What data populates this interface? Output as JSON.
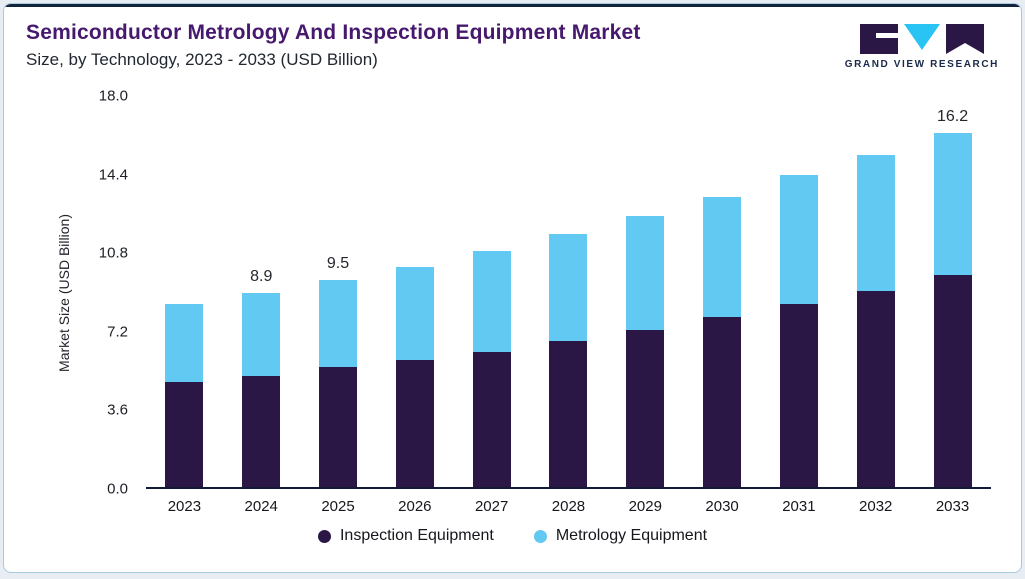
{
  "header": {
    "title": "Semiconductor Metrology And Inspection Equipment Market",
    "subtitle": "Size, by Technology, 2023 - 2033 (USD Billion)"
  },
  "logo": {
    "name": "Grand View Research",
    "text": "GRAND VIEW RESEARCH",
    "dark_color": "#2b1745",
    "cyan_color": "#29c4f3"
  },
  "chart_data": {
    "type": "bar",
    "subtype": "stacked",
    "title": "Semiconductor Metrology And Inspection Equipment Market Size, by Technology, 2023 - 2033 (USD Billion)",
    "ylabel": "Market Size (USD Billion)",
    "xlabel": "",
    "ylim": [
      0,
      18
    ],
    "yticks": [
      "0.0",
      "3.6",
      "7.2",
      "10.8",
      "14.4",
      "18.0"
    ],
    "grid": false,
    "legend_position": "bottom",
    "categories": [
      "2023",
      "2024",
      "2025",
      "2026",
      "2027",
      "2028",
      "2029",
      "2030",
      "2031",
      "2032",
      "2033"
    ],
    "series": [
      {
        "name": "Inspection Equipment",
        "color": "#2b1745",
        "values": [
          4.8,
          5.1,
          5.5,
          5.8,
          6.2,
          6.7,
          7.2,
          7.8,
          8.4,
          9.0,
          9.7
        ]
      },
      {
        "name": "Metrology Equipment",
        "color": "#62c9f3",
        "values": [
          3.6,
          3.8,
          4.0,
          4.3,
          4.6,
          4.9,
          5.2,
          5.5,
          5.9,
          6.2,
          6.5
        ]
      }
    ],
    "totals": [
      8.4,
      8.9,
      9.5,
      10.1,
      10.8,
      11.6,
      12.4,
      13.3,
      14.3,
      15.2,
      16.2
    ],
    "total_labels": [
      "",
      "8.9",
      "9.5",
      "",
      "",
      "",
      "",
      "",
      "",
      "",
      "16.2"
    ]
  }
}
